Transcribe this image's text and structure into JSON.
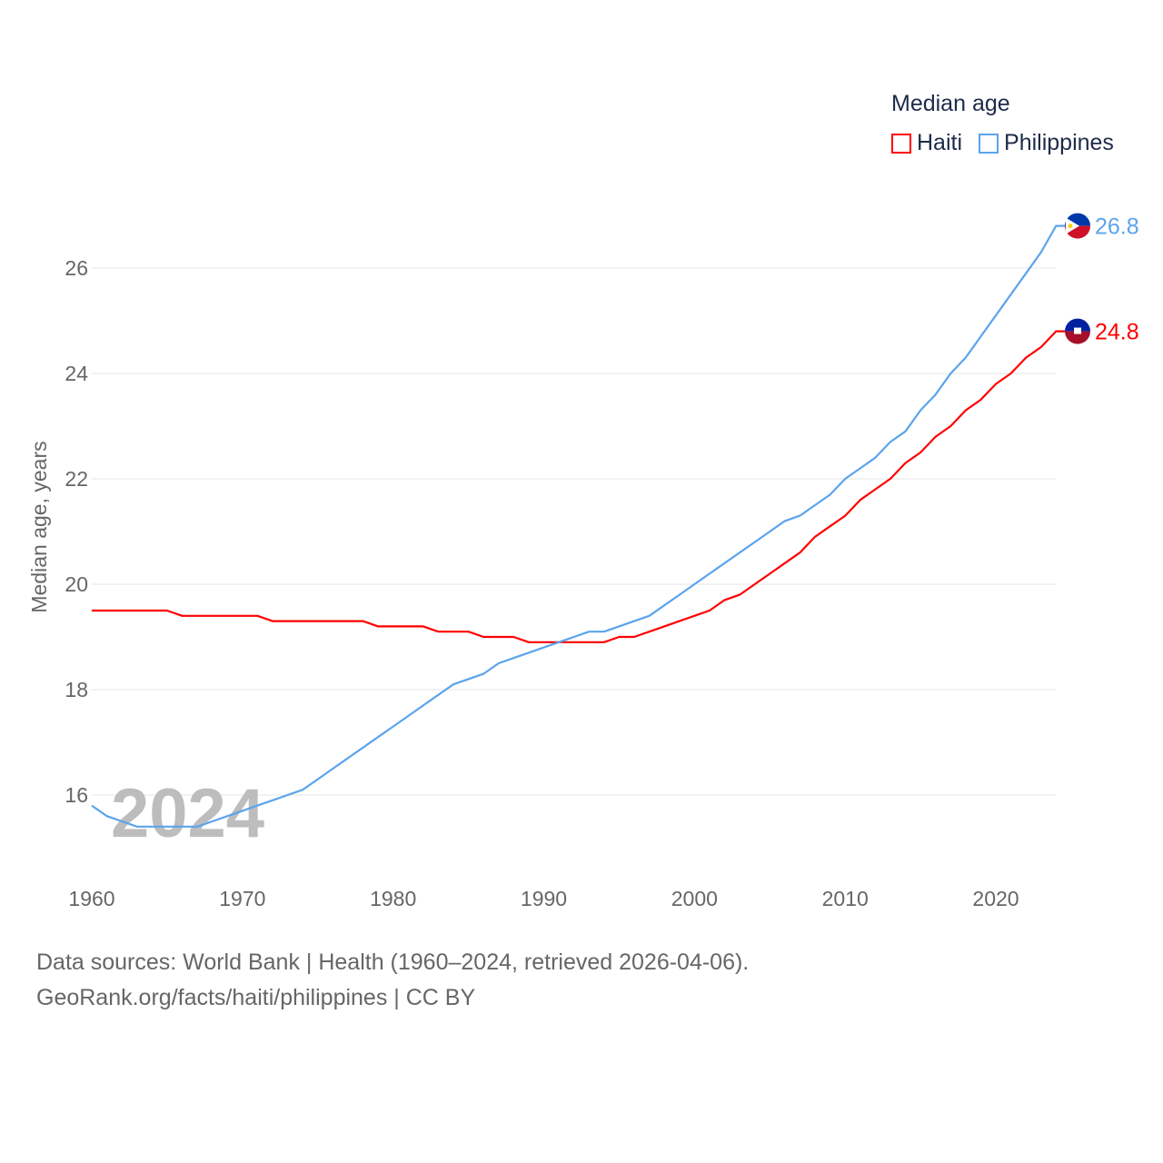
{
  "chart_data": {
    "type": "line",
    "title": "Median age",
    "xlabel": "",
    "ylabel": "Median age, years",
    "xlim": [
      1960,
      2024
    ],
    "ylim": [
      15,
      27
    ],
    "x_ticks": [
      "1960",
      "1970",
      "1980",
      "1990",
      "2000",
      "2010",
      "2020"
    ],
    "y_ticks": [
      "16",
      "18",
      "20",
      "22",
      "24",
      "26"
    ],
    "grid": true,
    "legend_placement": "top-right",
    "watermark_year": "2024",
    "x": [
      1960,
      1961,
      1962,
      1963,
      1964,
      1965,
      1966,
      1967,
      1968,
      1969,
      1970,
      1971,
      1972,
      1973,
      1974,
      1975,
      1976,
      1977,
      1978,
      1979,
      1980,
      1981,
      1982,
      1983,
      1984,
      1985,
      1986,
      1987,
      1988,
      1989,
      1990,
      1991,
      1992,
      1993,
      1994,
      1995,
      1996,
      1997,
      1998,
      1999,
      2000,
      2001,
      2002,
      2003,
      2004,
      2005,
      2006,
      2007,
      2008,
      2009,
      2010,
      2011,
      2012,
      2013,
      2014,
      2015,
      2016,
      2017,
      2018,
      2019,
      2020,
      2021,
      2022,
      2023,
      2024
    ],
    "series": [
      {
        "name": "Haiti",
        "color": "#ff0000",
        "end_label": "24.8",
        "values": [
          19.5,
          19.5,
          19.5,
          19.5,
          19.5,
          19.5,
          19.4,
          19.4,
          19.4,
          19.4,
          19.4,
          19.4,
          19.3,
          19.3,
          19.3,
          19.3,
          19.3,
          19.3,
          19.3,
          19.2,
          19.2,
          19.2,
          19.2,
          19.1,
          19.1,
          19.1,
          19.0,
          19.0,
          19.0,
          18.9,
          18.9,
          18.9,
          18.9,
          18.9,
          18.9,
          19.0,
          19.0,
          19.1,
          19.2,
          19.3,
          19.4,
          19.5,
          19.7,
          19.8,
          20.0,
          20.2,
          20.4,
          20.6,
          20.9,
          21.1,
          21.3,
          21.6,
          21.8,
          22.0,
          22.3,
          22.5,
          22.8,
          23.0,
          23.3,
          23.5,
          23.8,
          24.0,
          24.3,
          24.5,
          24.8
        ]
      },
      {
        "name": "Philippines",
        "color": "#5ba4ec",
        "end_label": "26.8",
        "values": [
          15.8,
          15.6,
          15.5,
          15.4,
          15.4,
          15.4,
          15.4,
          15.4,
          15.5,
          15.6,
          15.7,
          15.8,
          15.9,
          16.0,
          16.1,
          16.3,
          16.5,
          16.7,
          16.9,
          17.1,
          17.3,
          17.5,
          17.7,
          17.9,
          18.1,
          18.2,
          18.3,
          18.5,
          18.6,
          18.7,
          18.8,
          18.9,
          19.0,
          19.1,
          19.1,
          19.2,
          19.3,
          19.4,
          19.6,
          19.8,
          20.0,
          20.2,
          20.4,
          20.6,
          20.8,
          21.0,
          21.2,
          21.3,
          21.5,
          21.7,
          22.0,
          22.2,
          22.4,
          22.7,
          22.9,
          23.3,
          23.6,
          24.0,
          24.3,
          24.7,
          25.1,
          25.5,
          25.9,
          26.3,
          26.8
        ]
      }
    ]
  },
  "footer": {
    "line1": "Data sources: World Bank | Health (1960–2024, retrieved 2026-04-06).",
    "line2": "GeoRank.org/facts/haiti/philippines | CC BY"
  }
}
